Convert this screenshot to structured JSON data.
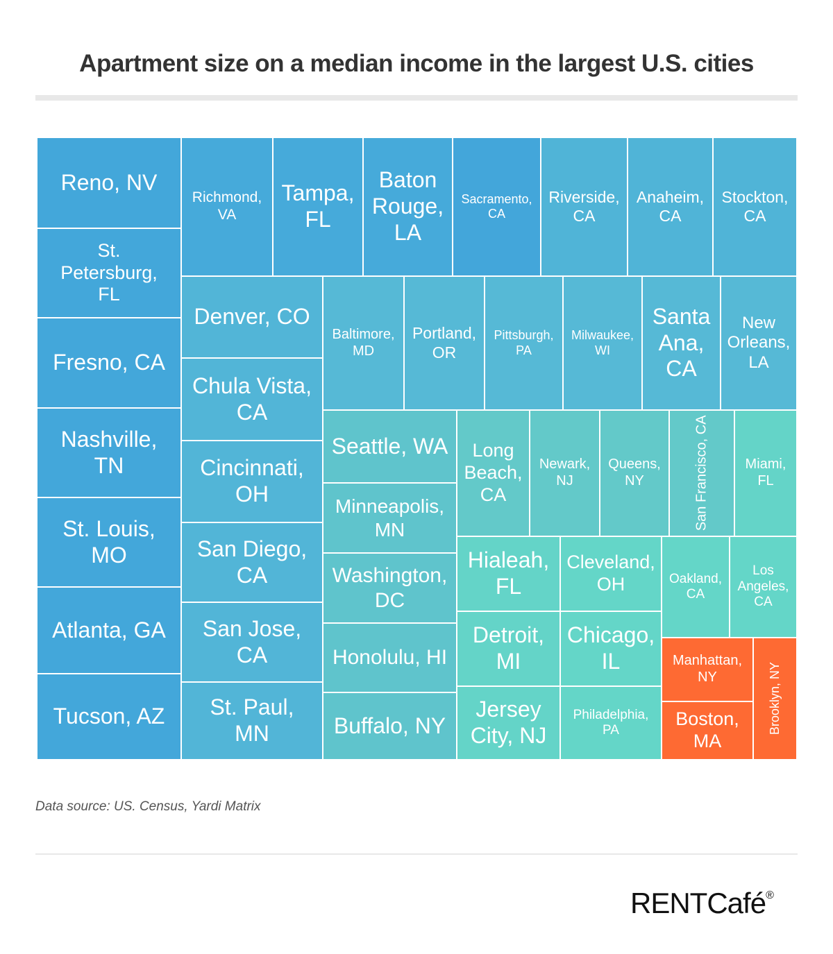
{
  "chart_data": {
    "type": "treemap",
    "title": "Apartment size on a median income in the largest U.S. cities",
    "colors": {
      "blue": "#43a7da",
      "blue_mid": "#50b4d7",
      "teal_blue": "#56b9d6",
      "teal": "#5fc4cc",
      "teal_light": "#63cec8",
      "mint": "#64d6c8",
      "orange": "#fe6a33"
    },
    "cells": [
      {
        "label": "Reno, NV",
        "color": "#43a7da"
      },
      {
        "label": "St. Petersburg, FL",
        "color": "#43a7da"
      },
      {
        "label": "Fresno, CA",
        "color": "#43a7da"
      },
      {
        "label": "Nashville, TN",
        "color": "#43a7da"
      },
      {
        "label": "St. Louis, MO",
        "color": "#43a7da"
      },
      {
        "label": "Atlanta, GA",
        "color": "#43a7da"
      },
      {
        "label": "Tucson, AZ",
        "color": "#43a7da"
      },
      {
        "label": "Richmond, VA",
        "color": "#46aada"
      },
      {
        "label": "Tampa, FL",
        "color": "#46aada"
      },
      {
        "label": "Baton Rouge, LA",
        "color": "#46aada"
      },
      {
        "label": "Sacramento, CA",
        "color": "#43a6da"
      },
      {
        "label": "Riverside, CA",
        "color": "#50b4d7"
      },
      {
        "label": "Anaheim, CA",
        "color": "#50b4d7"
      },
      {
        "label": "Stockton, CA",
        "color": "#50b4d7"
      },
      {
        "label": "Denver, CO",
        "color": "#52b5d7"
      },
      {
        "label": "Chula Vista, CA",
        "color": "#52b5d7"
      },
      {
        "label": "Cincinnati, OH",
        "color": "#52b5d7"
      },
      {
        "label": "San Diego, CA",
        "color": "#52b5d7"
      },
      {
        "label": "San Jose, CA",
        "color": "#52b5d7"
      },
      {
        "label": "St. Paul, MN",
        "color": "#52b5d7"
      },
      {
        "label": "Baltimore, MD",
        "color": "#56b9d6"
      },
      {
        "label": "Portland, OR",
        "color": "#56b9d6"
      },
      {
        "label": "Pittsburgh, PA",
        "color": "#56b9d6"
      },
      {
        "label": "Milwaukee, WI",
        "color": "#56b9d6"
      },
      {
        "label": "Santa Ana, CA",
        "color": "#56b9d6"
      },
      {
        "label": "New Orleans, LA",
        "color": "#56b9d6"
      },
      {
        "label": "Seattle, WA",
        "color": "#5fc4cc"
      },
      {
        "label": "Minneapolis, MN",
        "color": "#5fc4cc"
      },
      {
        "label": "Washington, DC",
        "color": "#5fc4cc"
      },
      {
        "label": "Honolulu, HI",
        "color": "#5fc4cc"
      },
      {
        "label": "Buffalo, NY",
        "color": "#5fc4cc"
      },
      {
        "label": "Long Beach, CA",
        "color": "#63c9c9"
      },
      {
        "label": "Newark, NJ",
        "color": "#63c9c9"
      },
      {
        "label": "Queens, NY",
        "color": "#63c9c9"
      },
      {
        "label": "San Francisco, CA",
        "color": "#63c9c9"
      },
      {
        "label": "Miami, FL",
        "color": "#64d4c8"
      },
      {
        "label": "Hialeah, FL",
        "color": "#64d4c8"
      },
      {
        "label": "Detroit, MI",
        "color": "#64d4c8"
      },
      {
        "label": "Jersey City, NJ",
        "color": "#64d4c8"
      },
      {
        "label": "Cleveland, OH",
        "color": "#64d6c8"
      },
      {
        "label": "Chicago, IL",
        "color": "#64d6c8"
      },
      {
        "label": "Philadelphia, PA",
        "color": "#64d6c8"
      },
      {
        "label": "Oakland, CA",
        "color": "#64d6c8"
      },
      {
        "label": "Los Angeles, CA",
        "color": "#64d6c8"
      },
      {
        "label": "Manhattan, NY",
        "color": "#fe6a33"
      },
      {
        "label": "Boston, MA",
        "color": "#fe6a33"
      },
      {
        "label": "Brooklyn, NY",
        "color": "#fe6a33"
      }
    ]
  },
  "footer": {
    "source": "Data source: US. Census, Yardi Matrix",
    "logo": "RENTCafé",
    "logo_mark": "®"
  }
}
